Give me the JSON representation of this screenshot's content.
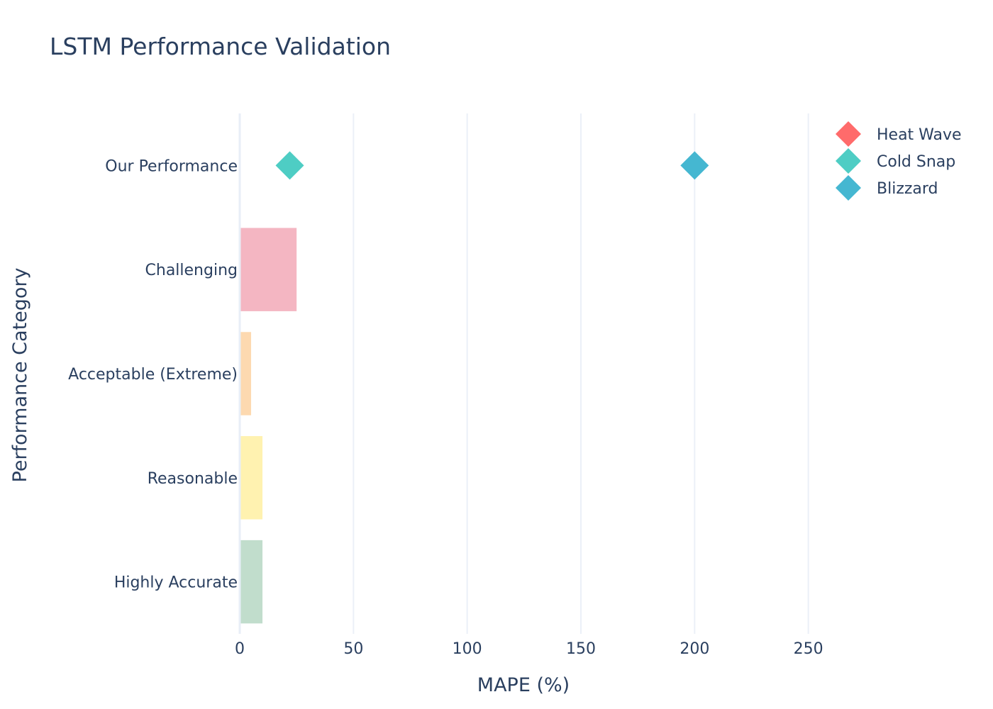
{
  "chart_data": {
    "type": "bar",
    "title": "LSTM Performance Validation",
    "xlabel": "MAPE (%)",
    "ylabel": "Performance Category",
    "xlim": [
      0,
      300
    ],
    "xticks": [
      0,
      50,
      100,
      150,
      200,
      250
    ],
    "categories": [
      "Our Performance",
      "Challenging",
      "Acceptable (Extreme)",
      "Reasonable",
      "Highly Accurate"
    ],
    "bars": [
      {
        "category": "Challenging",
        "value": 25,
        "color": "#f4b6c2"
      },
      {
        "category": "Acceptable (Extreme)",
        "value": 5,
        "color": "#fdd9b0"
      },
      {
        "category": "Reasonable",
        "value": 10,
        "color": "#fff2b0"
      },
      {
        "category": "Highly Accurate",
        "value": 10,
        "color": "#c1ddcc"
      }
    ],
    "series": [
      {
        "name": "Heat Wave",
        "color": "#ff6b6b",
        "points": []
      },
      {
        "name": "Cold Snap",
        "color": "#4ecdc4",
        "points": [
          {
            "category": "Our Performance",
            "value": 22
          }
        ]
      },
      {
        "name": "Blizzard",
        "color": "#45b7d1",
        "points": [
          {
            "category": "Our Performance",
            "value": 200
          }
        ]
      }
    ],
    "legend_position": "top-right",
    "grid": true
  }
}
